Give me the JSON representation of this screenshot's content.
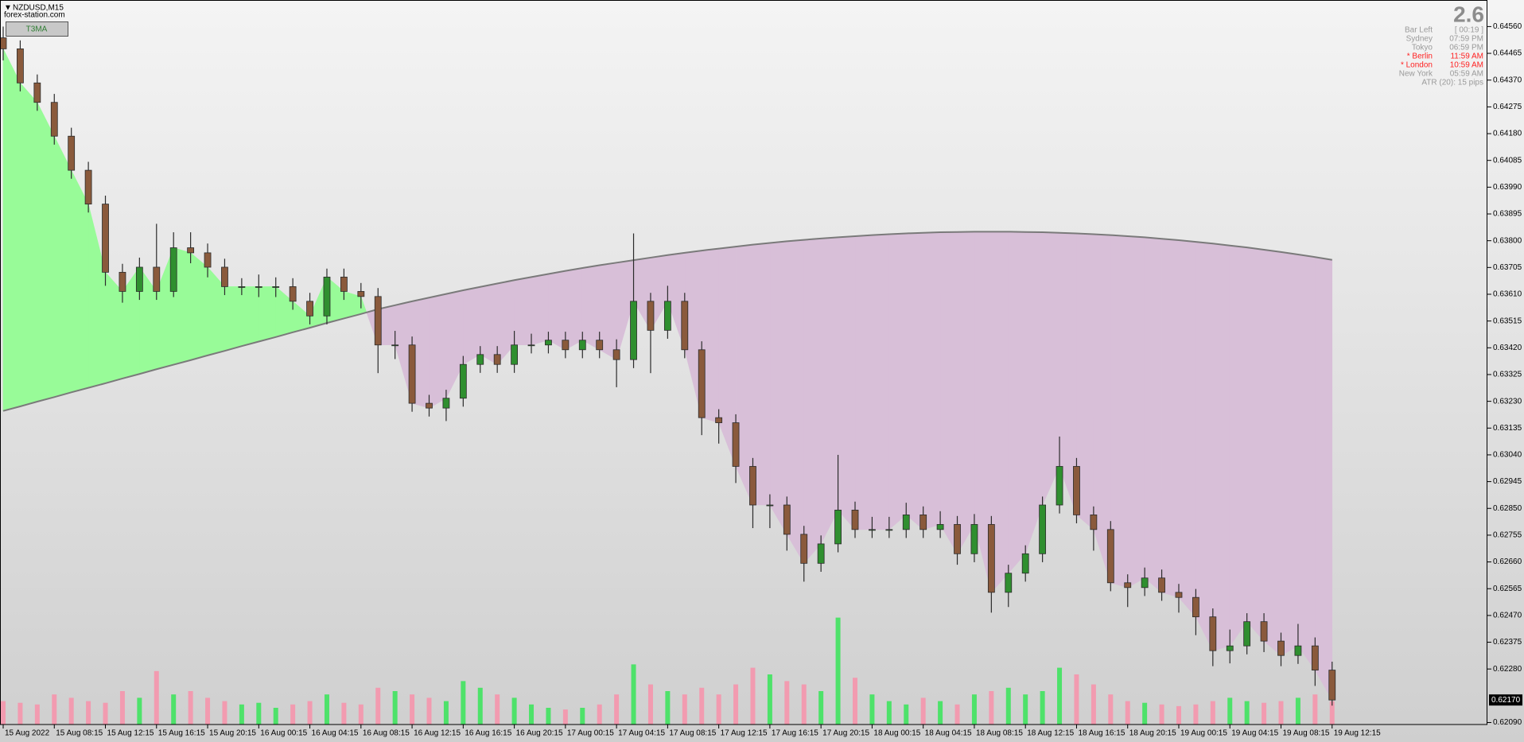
{
  "chart_data": {
    "type": "candlestick",
    "symbol": "NZDUSD,M15",
    "source": "forex-station.com",
    "button": "T3MA",
    "categories": [
      "15 Aug 2022",
      null,
      null,
      "15 Aug 08:15",
      null,
      null,
      "15 Aug 12:15",
      null,
      null,
      "15 Aug 16:15",
      null,
      null,
      "15 Aug 20:15",
      null,
      null,
      "16 Aug 00:15",
      null,
      null,
      "16 Aug 04:15",
      null,
      null,
      "16 Aug 08:15",
      null,
      null,
      "16 Aug 12:15",
      null,
      null,
      "16 Aug 16:15",
      null,
      null,
      "16 Aug 20:15",
      null,
      null,
      "17 Aug 00:15",
      null,
      null,
      "17 Aug 04:15",
      null,
      null,
      "17 Aug 08:15",
      null,
      null,
      "17 Aug 12:15",
      null,
      null,
      "17 Aug 16:15",
      null,
      null,
      "17 Aug 20:15",
      null,
      null,
      "18 Aug 00:15",
      null,
      null,
      "18 Aug 04:15",
      null,
      null,
      "18 Aug 08:15",
      null,
      null,
      "18 Aug 12:15",
      null,
      null,
      "18 Aug 16:15",
      null,
      null,
      "18 Aug 20:15",
      null,
      null,
      "19 Aug 00:15",
      null,
      null,
      "19 Aug 04:15",
      null,
      null,
      "19 Aug 08:15",
      null,
      null,
      "19 Aug 12:15"
    ],
    "open": [
      0.6452,
      0.64481,
      0.6436,
      0.64291,
      0.64171,
      0.6405,
      0.6393,
      0.63688,
      0.6362,
      0.63706,
      0.6362,
      0.63775,
      0.63757,
      0.63706,
      0.63637,
      0.63637,
      0.63637,
      0.63637,
      0.63585,
      0.63533,
      0.63671,
      0.6362,
      0.63602,
      0.6343,
      0.6343,
      0.63223,
      0.63206,
      0.63241,
      0.63361,
      0.63396,
      0.63361,
      0.6343,
      0.6343,
      0.63447,
      0.63413,
      0.63447,
      0.63413,
      0.63378,
      0.63585,
      0.63482,
      0.63585,
      0.63413,
      0.63172,
      0.63154,
      0.62999,
      0.62862,
      0.62862,
      0.62758,
      0.62655,
      0.62724,
      0.62844,
      0.62775,
      0.62775,
      0.62775,
      0.62827,
      0.62775,
      0.62793,
      0.62689,
      0.62793,
      0.62552,
      0.6262,
      0.62689,
      0.62862,
      0.62999,
      0.62827,
      0.62775,
      0.62586,
      0.62569,
      0.62603,
      0.62552,
      0.62534,
      0.62465,
      0.62345,
      0.62362,
      0.62448,
      0.62379,
      0.62328,
      0.62362,
      0.62276
    ],
    "high": [
      0.6456,
      0.64511,
      0.6439,
      0.64321,
      0.64201,
      0.6408,
      0.6396,
      0.63718,
      0.6374,
      0.6386,
      0.6383,
      0.6383,
      0.6379,
      0.63736,
      0.63667,
      0.6368,
      0.6367,
      0.63667,
      0.63615,
      0.63701,
      0.63701,
      0.6365,
      0.63632,
      0.6348,
      0.6346,
      0.63253,
      0.63271,
      0.63391,
      0.63426,
      0.63426,
      0.6348,
      0.6347,
      0.63477,
      0.63477,
      0.63477,
      0.63477,
      0.6345,
      0.63826,
      0.63615,
      0.6364,
      0.63615,
      0.63443,
      0.63202,
      0.63184,
      0.63029,
      0.629,
      0.62892,
      0.62788,
      0.62754,
      0.6304,
      0.62874,
      0.6282,
      0.6282,
      0.6287,
      0.62857,
      0.6284,
      0.62823,
      0.6283,
      0.62823,
      0.6265,
      0.62719,
      0.62892,
      0.63105,
      0.63029,
      0.62857,
      0.62805,
      0.62616,
      0.6264,
      0.62633,
      0.62582,
      0.62564,
      0.62495,
      0.6242,
      0.62478,
      0.62478,
      0.62409,
      0.6244,
      0.62392,
      0.62306
    ],
    "low": [
      0.6444,
      0.6433,
      0.64261,
      0.64141,
      0.6402,
      0.639,
      0.6364,
      0.6358,
      0.6359,
      0.6359,
      0.636,
      0.6372,
      0.6367,
      0.63607,
      0.63607,
      0.636,
      0.636,
      0.63555,
      0.63503,
      0.63503,
      0.6359,
      0.6356,
      0.6333,
      0.6338,
      0.63193,
      0.63176,
      0.6316,
      0.63211,
      0.63331,
      0.63331,
      0.63331,
      0.634,
      0.634,
      0.63383,
      0.63383,
      0.63383,
      0.6328,
      0.63348,
      0.6333,
      0.63452,
      0.63383,
      0.6311,
      0.6308,
      0.6294,
      0.6278,
      0.6278,
      0.627,
      0.6259,
      0.62625,
      0.62694,
      0.62745,
      0.62745,
      0.62745,
      0.62745,
      0.62745,
      0.62745,
      0.6265,
      0.62659,
      0.6248,
      0.625,
      0.6259,
      0.62659,
      0.62832,
      0.62797,
      0.627,
      0.62556,
      0.625,
      0.62539,
      0.62522,
      0.6248,
      0.624,
      0.6229,
      0.623,
      0.62332,
      0.6234,
      0.6229,
      0.62298,
      0.6222,
      0.6215
    ],
    "close": [
      0.64481,
      0.6436,
      0.64291,
      0.64171,
      0.6405,
      0.6393,
      0.63688,
      0.6362,
      0.63706,
      0.6362,
      0.63775,
      0.63757,
      0.63706,
      0.63637,
      0.63637,
      0.63637,
      0.63637,
      0.63585,
      0.63533,
      0.63671,
      0.6362,
      0.63602,
      0.6343,
      0.6343,
      0.63223,
      0.63206,
      0.63241,
      0.63361,
      0.63396,
      0.63361,
      0.6343,
      0.6343,
      0.63447,
      0.63413,
      0.63447,
      0.63413,
      0.63378,
      0.63585,
      0.63482,
      0.63585,
      0.63413,
      0.63172,
      0.63154,
      0.62999,
      0.62862,
      0.62862,
      0.62758,
      0.62655,
      0.62724,
      0.62844,
      0.62775,
      0.62775,
      0.62775,
      0.62827,
      0.62775,
      0.62793,
      0.62689,
      0.62793,
      0.62552,
      0.6262,
      0.62689,
      0.62862,
      0.62999,
      0.62827,
      0.62775,
      0.62586,
      0.62569,
      0.62603,
      0.62552,
      0.62534,
      0.62465,
      0.62345,
      0.62362,
      0.62448,
      0.62379,
      0.62328,
      0.62362,
      0.62276,
      0.6217
    ],
    "volume": [
      700,
      650,
      600,
      900,
      800,
      700,
      650,
      1000,
      800,
      1600,
      900,
      1000,
      800,
      700,
      600,
      650,
      500,
      600,
      700,
      900,
      650,
      600,
      1100,
      1000,
      900,
      800,
      700,
      1300,
      1100,
      900,
      800,
      600,
      500,
      450,
      500,
      600,
      900,
      1800,
      1200,
      1000,
      900,
      1100,
      900,
      1200,
      1700,
      1500,
      1300,
      1200,
      1000,
      3200,
      1400,
      900,
      700,
      600,
      800,
      700,
      600,
      900,
      1000,
      1100,
      900,
      1000,
      1700,
      1500,
      1200,
      900,
      700,
      650,
      600,
      550,
      600,
      700,
      800,
      700,
      650,
      700,
      800,
      900,
      700
    ],
    "t3": {
      "color": "#7a7a7a",
      "values": [
        0.63196,
        0.63212,
        0.63229,
        0.63245,
        0.63262,
        0.63278,
        0.63294,
        0.63311,
        0.63327,
        0.63344,
        0.6336,
        0.63376,
        0.63393,
        0.63409,
        0.63426,
        0.63442,
        0.63458,
        0.63475,
        0.63491,
        0.63508,
        0.63524,
        0.6354,
        0.63557,
        0.63571,
        0.63585,
        0.63598,
        0.63611,
        0.63624,
        0.63636,
        0.63648,
        0.6366,
        0.63671,
        0.63682,
        0.63693,
        0.63703,
        0.63713,
        0.63722,
        0.63731,
        0.6374,
        0.63749,
        0.63757,
        0.63765,
        0.63772,
        0.63779,
        0.63786,
        0.63792,
        0.63798,
        0.63803,
        0.63808,
        0.63812,
        0.63816,
        0.6382,
        0.63823,
        0.63826,
        0.63828,
        0.6383,
        0.63831,
        0.63832,
        0.63832,
        0.63832,
        0.63831,
        0.6383,
        0.63828,
        0.63826,
        0.63823,
        0.6382,
        0.63816,
        0.63812,
        0.63807,
        0.63802,
        0.63796,
        0.6379,
        0.63783,
        0.63776,
        0.63768,
        0.6376,
        0.63751,
        0.63742,
        0.63732
      ]
    },
    "colors": {
      "fill_above": "#98fb98",
      "fill_below": "#d8bfd8",
      "bull": "#2f8f2f",
      "bear": "#8a5a3c",
      "wick": "#2b2b2b",
      "volume_up": "#4ee26a",
      "volume_down": "#f29bb0"
    },
    "ylim": [
      0.62083,
      0.64643
    ],
    "yticks": [
      {
        "value": 0.6456,
        "label": "0.64560"
      },
      {
        "value": 0.64465,
        "label": "0.64465"
      },
      {
        "value": 0.6437,
        "label": "0.64370"
      },
      {
        "value": 0.64275,
        "label": "0.64275"
      },
      {
        "value": 0.6418,
        "label": "0.64180"
      },
      {
        "value": 0.64085,
        "label": "0.64085"
      },
      {
        "value": 0.6399,
        "label": "0.63990"
      },
      {
        "value": 0.63895,
        "label": "0.63895"
      },
      {
        "value": 0.638,
        "label": "0.63800"
      },
      {
        "value": 0.63705,
        "label": "0.63705"
      },
      {
        "value": 0.6361,
        "label": "0.63610"
      },
      {
        "value": 0.63515,
        "label": "0.63515"
      },
      {
        "value": 0.6342,
        "label": "0.63420"
      },
      {
        "value": 0.63325,
        "label": "0.63325"
      },
      {
        "value": 0.6323,
        "label": "0.63230"
      },
      {
        "value": 0.63135,
        "label": "0.63135"
      },
      {
        "value": 0.6304,
        "label": "0.63040"
      },
      {
        "value": 0.62945,
        "label": "0.62945"
      },
      {
        "value": 0.6285,
        "label": "0.62850"
      },
      {
        "value": 0.62755,
        "label": "0.62755"
      },
      {
        "value": 0.6266,
        "label": "0.62660"
      },
      {
        "value": 0.62565,
        "label": "0.62565"
      },
      {
        "value": 0.6247,
        "label": "0.62470"
      },
      {
        "value": 0.62375,
        "label": "0.62375"
      },
      {
        "value": 0.6228,
        "label": "0.62280"
      },
      {
        "value": 0.6209,
        "label": "0.62090"
      }
    ],
    "current_price": {
      "value": 0.6217,
      "label": "0.62170"
    },
    "info": {
      "spread": "2.6",
      "rows": [
        {
          "label": "Bar Left",
          "value": "[ 00:19 ]",
          "color": "#9a9a9a"
        },
        {
          "label": "Sydney",
          "value": "07:59 PM",
          "color": "#9a9a9a"
        },
        {
          "label": "Tokyo",
          "value": "06:59 PM",
          "color": "#9a9a9a"
        },
        {
          "label": "* Berlin",
          "value": "11:59 AM",
          "color": "#ff2020"
        },
        {
          "label": "* London",
          "value": "10:59 AM",
          "color": "#ff2020"
        },
        {
          "label": "New York",
          "value": "05:59 AM",
          "color": "#9a9a9a"
        }
      ],
      "atr": "ATR (20): 15 pips"
    }
  }
}
